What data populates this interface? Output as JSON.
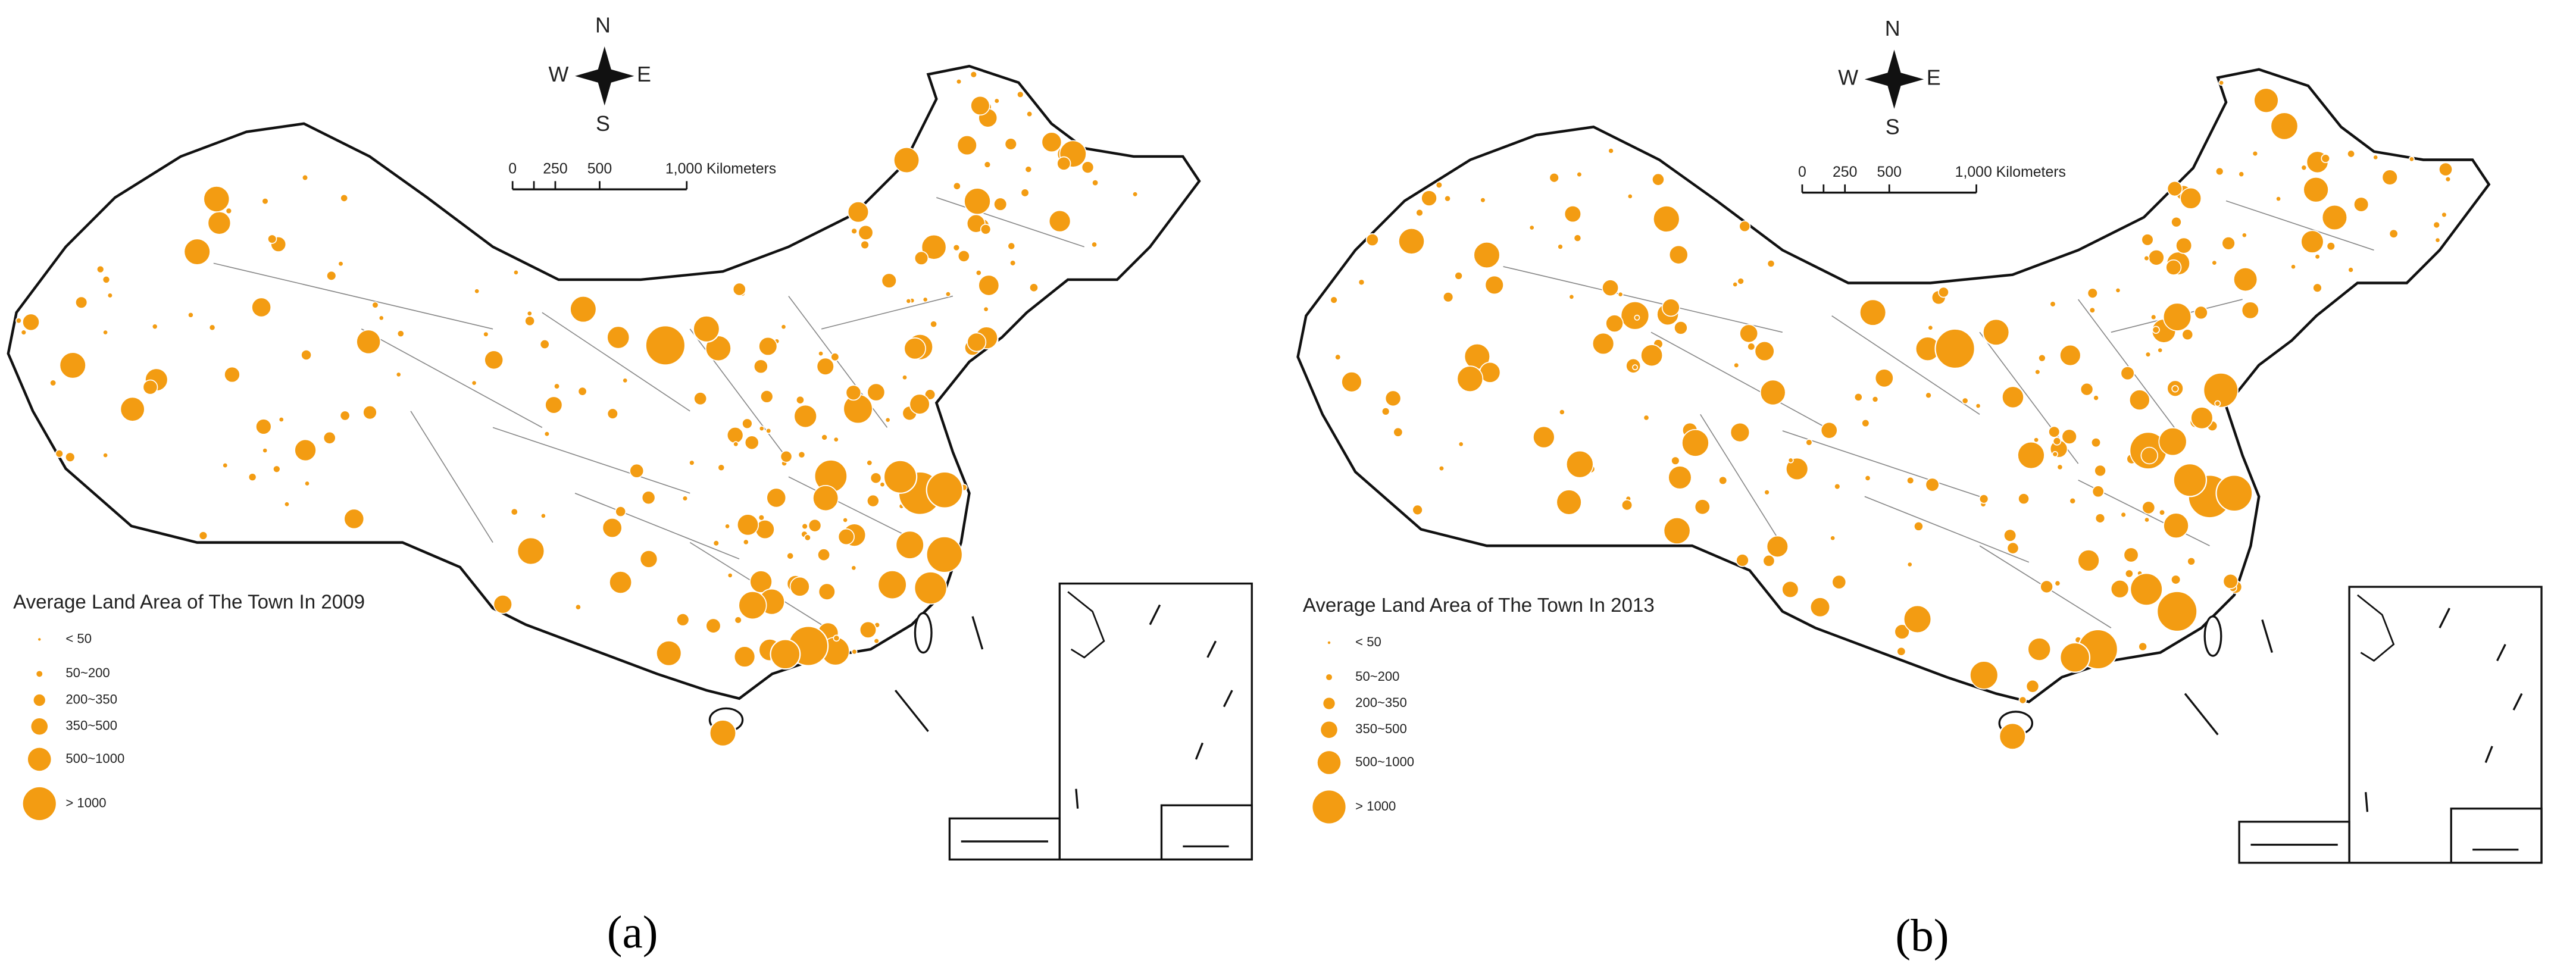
{
  "panels": [
    {
      "caption": "(a)",
      "compass": {
        "n": "N",
        "s": "S",
        "w": "W",
        "e": "E"
      },
      "scale_bar": {
        "labels": [
          "0",
          "250",
          "500",
          "1,000 Kilometers"
        ]
      },
      "legend": {
        "title": "Average Land Area of The Town In 2009",
        "items": [
          "< 50",
          "50~200",
          "200~350",
          "350~500",
          "500~1000",
          "> 1000"
        ]
      }
    },
    {
      "caption": "(b)",
      "compass": {
        "n": "N",
        "s": "S",
        "w": "W",
        "e": "E"
      },
      "scale_bar": {
        "labels": [
          "0",
          "250",
          "500",
          "1,000 Kilometers"
        ]
      },
      "legend": {
        "title": "Average Land Area of The Town In 2013",
        "items": [
          "< 50",
          "50~200",
          "200~350",
          "350~500",
          "500~1000",
          "> 1000"
        ]
      }
    }
  ]
}
